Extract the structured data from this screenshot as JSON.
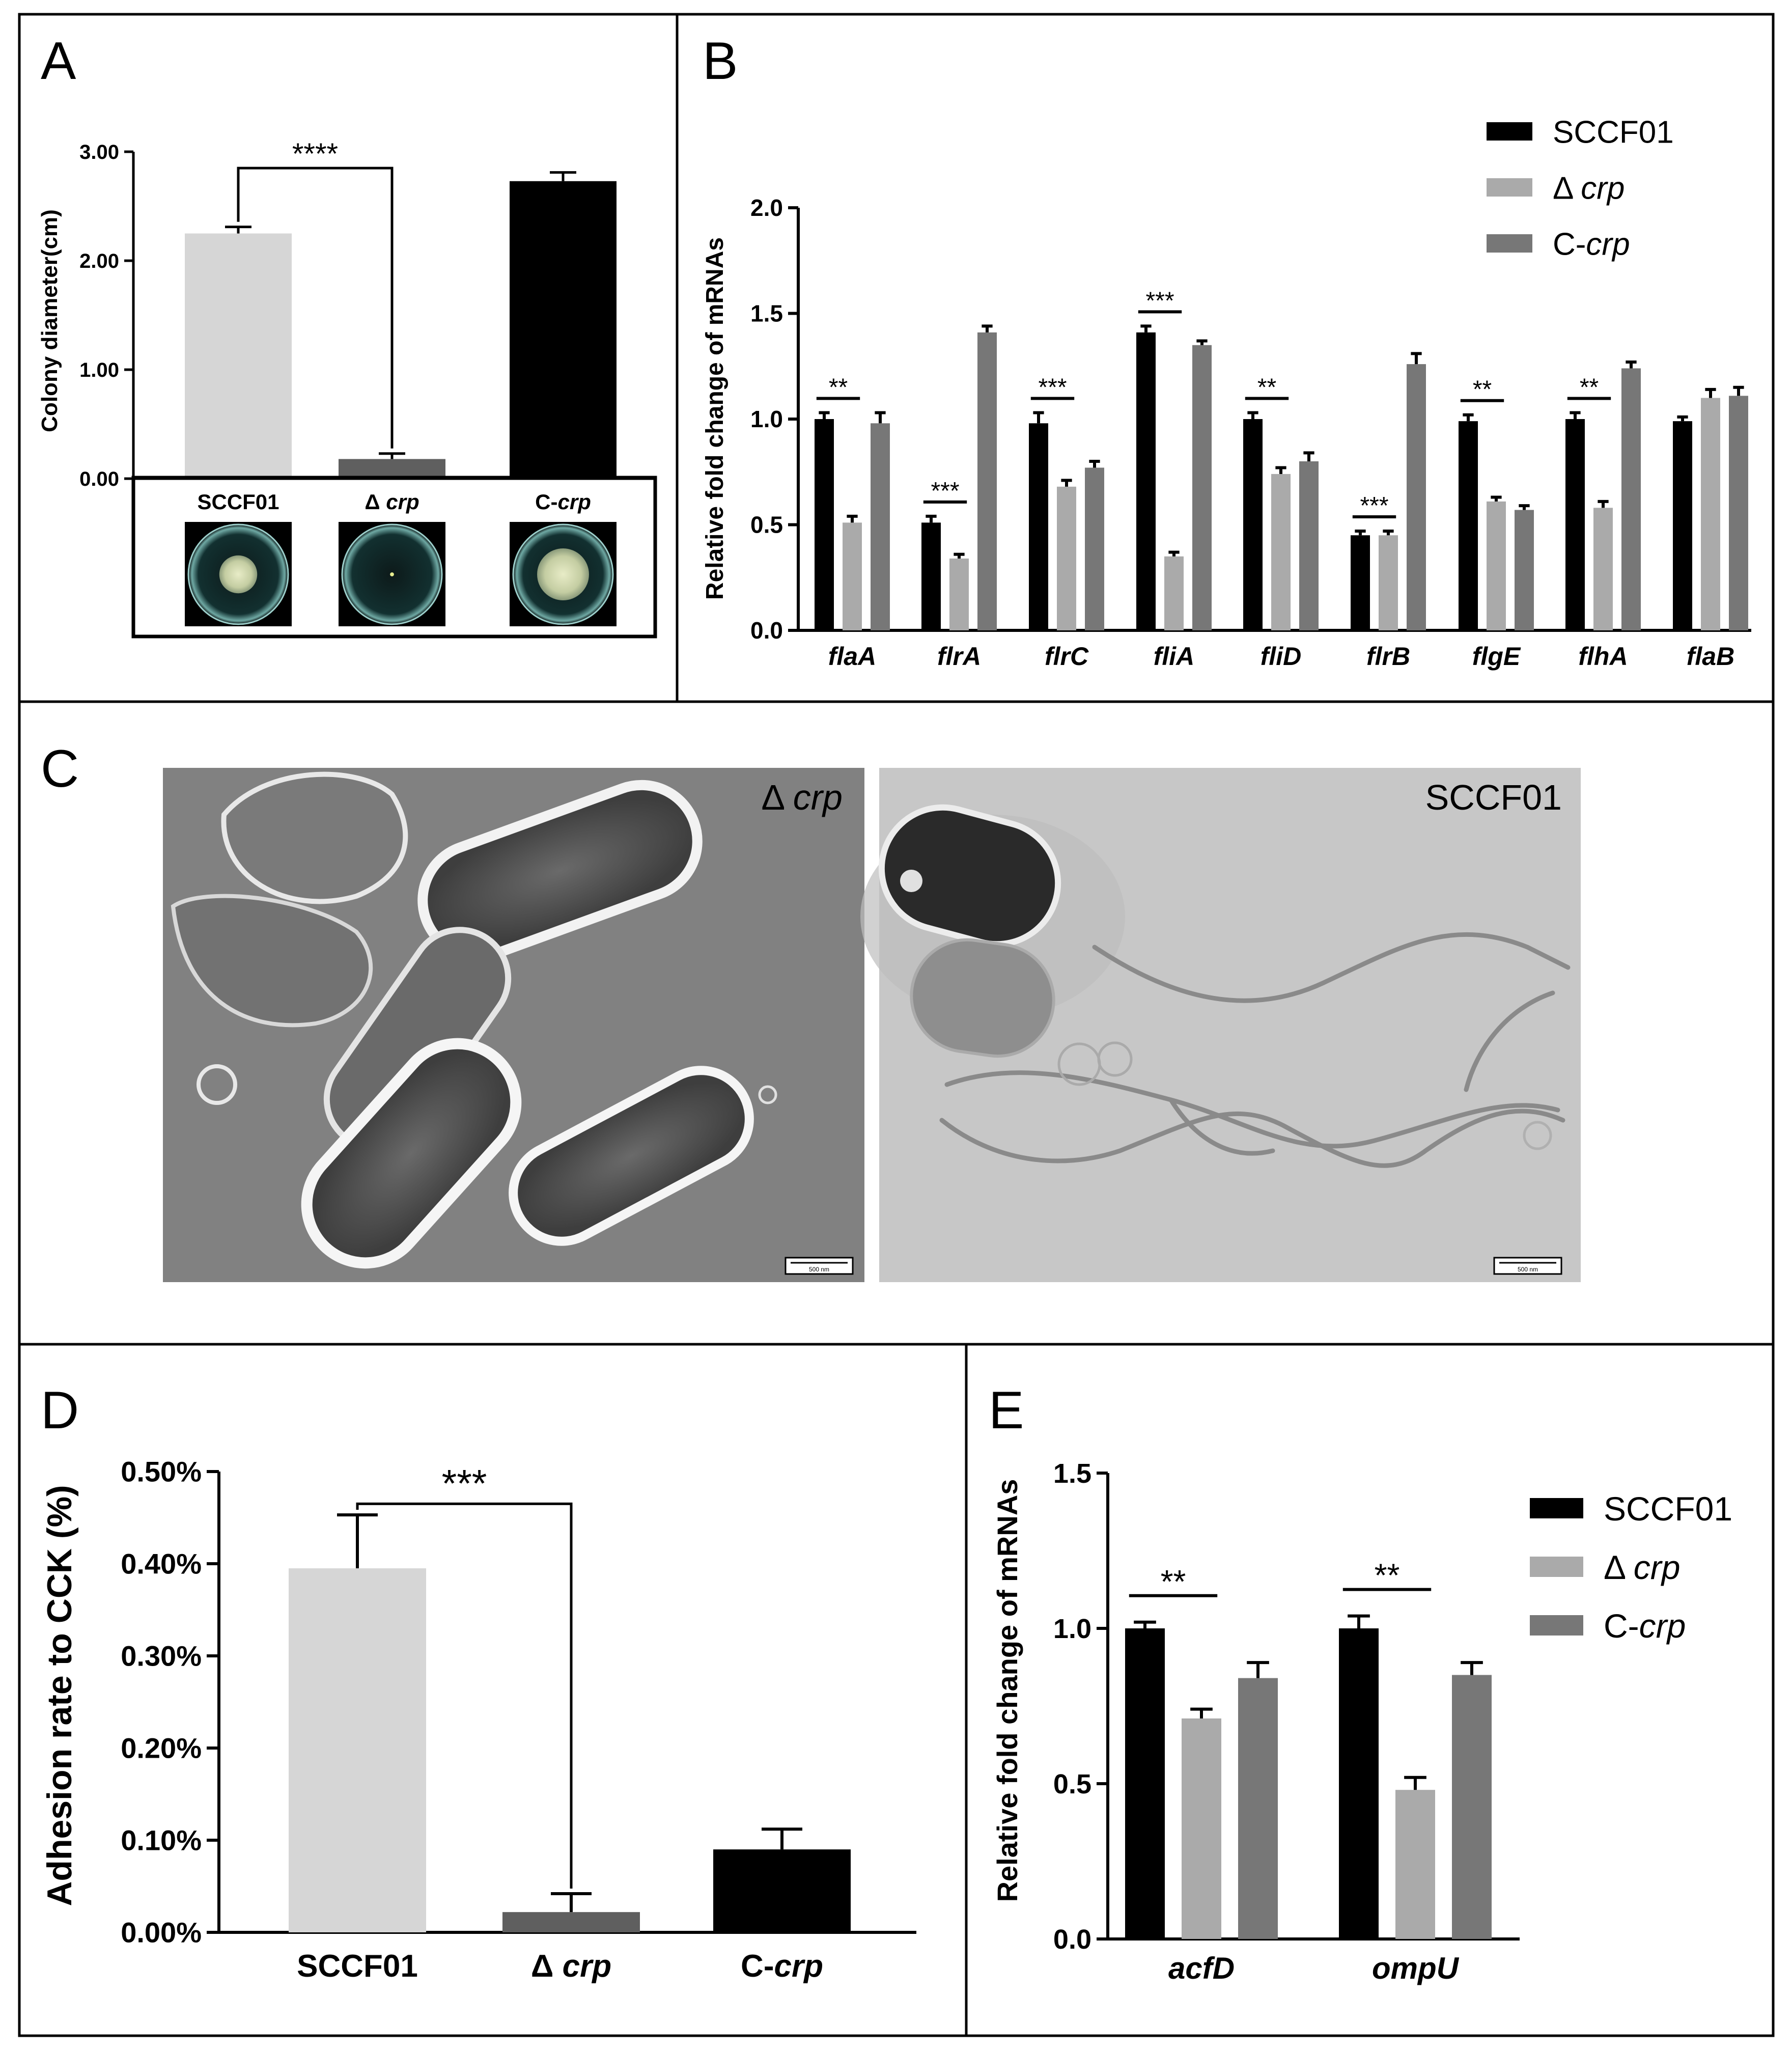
{
  "panels": {
    "A": {
      "letter": "A"
    },
    "B": {
      "letter": "B"
    },
    "C": {
      "letter": "C",
      "left_label_delta": "Δ ",
      "left_label_gene": "crp",
      "right_label": "SCCF01",
      "scale_bar": "500 nm"
    },
    "D": {
      "letter": "D"
    },
    "E": {
      "letter": "E"
    }
  },
  "colors": {
    "SCCF01_B": "#000000",
    "dcrp_B": "#aaaaaa",
    "Ccrp_B": "#777777",
    "SCCF01_A": "#d6d6d6",
    "dcrp_A": "#5f5f5f",
    "Ccrp_A": "#000000"
  },
  "legend": [
    {
      "pre": "SCCF01",
      "it": ""
    },
    {
      "pre": "Δ ",
      "it": "crp"
    },
    {
      "pre": "C-",
      "it": "crp"
    }
  ],
  "chart_data": [
    {
      "id": "A",
      "type": "bar",
      "ylabel": "Colony diameter(cm)",
      "ylim": [
        0,
        3
      ],
      "yticks": [
        "0.00",
        "1.00",
        "2.00",
        "3.00"
      ],
      "categories": [
        {
          "pre": "SCCF01",
          "it": ""
        },
        {
          "pre": "Δ ",
          "it": "crp"
        },
        {
          "pre": "C-",
          "it": "crp"
        }
      ],
      "values": [
        2.25,
        0.18,
        2.73
      ],
      "errors": [
        0.06,
        0.05,
        0.08
      ],
      "significance": [
        {
          "from": 0,
          "to": 1,
          "label": "****"
        }
      ]
    },
    {
      "id": "B",
      "type": "bar",
      "ylabel": "Relative fold change of mRNAs",
      "ylim": [
        0,
        2
      ],
      "yticks": [
        "0.0",
        "0.5",
        "1.0",
        "1.5",
        "2.0"
      ],
      "categories": [
        "flaA",
        "flrA",
        "flrC",
        "fliA",
        "fliD",
        "flrB",
        "flgE",
        "flhA",
        "flaB"
      ],
      "series": [
        {
          "values": [
            1.0,
            0.51,
            0.98,
            1.41,
            1.0,
            0.45,
            0.99,
            1.0,
            0.99
          ],
          "errors": [
            0.03,
            0.03,
            0.05,
            0.03,
            0.03,
            0.02,
            0.03,
            0.03,
            0.02
          ]
        },
        {
          "values": [
            0.51,
            0.34,
            0.68,
            0.35,
            0.74,
            0.45,
            0.61,
            0.58,
            1.1
          ],
          "errors": [
            0.03,
            0.02,
            0.03,
            0.02,
            0.03,
            0.02,
            0.02,
            0.03,
            0.04
          ]
        },
        {
          "values": [
            0.98,
            1.41,
            0.77,
            1.35,
            0.8,
            1.26,
            0.57,
            1.24,
            1.11
          ],
          "errors": [
            0.05,
            0.03,
            0.03,
            0.02,
            0.04,
            0.05,
            0.02,
            0.03,
            0.04
          ]
        }
      ],
      "significance": [
        "**",
        "***",
        "***",
        "***",
        "**",
        "***",
        "**",
        "**",
        ""
      ]
    },
    {
      "id": "D",
      "type": "bar",
      "ylabel": "Adhesion rate to CCK (%)",
      "ylim": [
        0,
        0.5
      ],
      "yticks": [
        "0.00%",
        "0.10%",
        "0.20%",
        "0.30%",
        "0.40%",
        "0.50%"
      ],
      "categories": [
        {
          "pre": "SCCF01",
          "it": ""
        },
        {
          "pre": "Δ ",
          "it": "crp"
        },
        {
          "pre": "C-",
          "it": "crp"
        }
      ],
      "values": [
        0.395,
        0.022,
        0.09
      ],
      "errors": [
        0.058,
        0.02,
        0.022
      ],
      "significance": [
        {
          "from": 0,
          "to": 1,
          "label": "***"
        }
      ]
    },
    {
      "id": "E",
      "type": "bar",
      "ylabel": "Relative fold change of mRNAs",
      "ylim": [
        0,
        1.5
      ],
      "yticks": [
        "0.0",
        "0.5",
        "1.0",
        "1.5"
      ],
      "categories": [
        "acfD",
        "ompU"
      ],
      "series": [
        {
          "values": [
            1.0,
            1.0
          ],
          "errors": [
            0.02,
            0.04
          ]
        },
        {
          "values": [
            0.71,
            0.48
          ],
          "errors": [
            0.03,
            0.04
          ]
        },
        {
          "values": [
            0.84,
            0.85
          ],
          "errors": [
            0.05,
            0.04
          ]
        }
      ],
      "significance": [
        "**",
        "**"
      ]
    }
  ]
}
